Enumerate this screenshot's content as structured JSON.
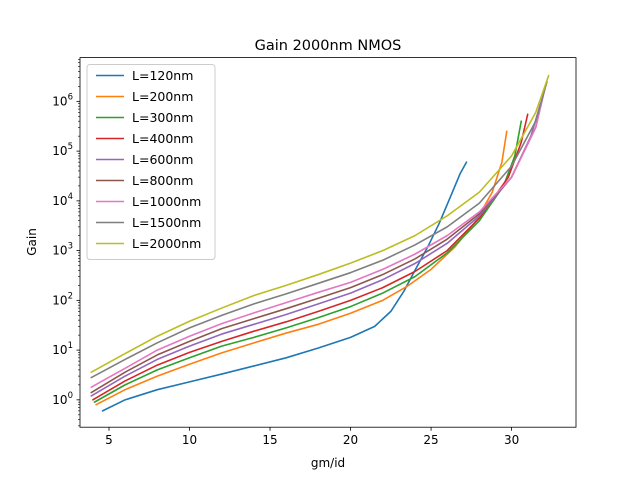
{
  "chart_data": {
    "type": "line",
    "title": "Gain 2000nm NMOS",
    "xlabel": "gm/id",
    "ylabel": "Gain",
    "xlim": [
      3.2,
      34.0
    ],
    "ylim_log10": [
      -0.55,
      6.88
    ],
    "y_scale": "log",
    "x_ticks": [
      5,
      10,
      15,
      20,
      25,
      30
    ],
    "y_ticks": [
      {
        "exp": 0,
        "label_base": "10",
        "label_exp": "0"
      },
      {
        "exp": 1,
        "label_base": "10",
        "label_exp": "1"
      },
      {
        "exp": 2,
        "label_base": "10",
        "label_exp": "2"
      },
      {
        "exp": 3,
        "label_base": "10",
        "label_exp": "3"
      },
      {
        "exp": 4,
        "label_base": "10",
        "label_exp": "4"
      },
      {
        "exp": 5,
        "label_base": "10",
        "label_exp": "5"
      },
      {
        "exp": 6,
        "label_base": "10",
        "label_exp": "6"
      }
    ],
    "grid": false,
    "legend_position": "top-left",
    "series": [
      {
        "name": "L=120nm",
        "color": "#1f77b4",
        "points": [
          [
            4.6,
            0.6
          ],
          [
            6,
            1.0
          ],
          [
            8,
            1.6
          ],
          [
            10,
            2.3
          ],
          [
            12,
            3.3
          ],
          [
            14,
            4.8
          ],
          [
            16,
            7.0
          ],
          [
            18,
            11
          ],
          [
            20,
            18
          ],
          [
            21.5,
            30
          ],
          [
            22.5,
            60
          ],
          [
            23.3,
            150
          ],
          [
            24,
            400
          ],
          [
            24.8,
            1200
          ],
          [
            25.5,
            3500
          ],
          [
            26.2,
            12000
          ],
          [
            26.8,
            35000
          ],
          [
            27.2,
            60000
          ]
        ]
      },
      {
        "name": "L=200nm",
        "color": "#ff7f0e",
        "points": [
          [
            4.2,
            0.8
          ],
          [
            6,
            1.6
          ],
          [
            8,
            3.0
          ],
          [
            10,
            5.2
          ],
          [
            12,
            8.8
          ],
          [
            14,
            14
          ],
          [
            16,
            22
          ],
          [
            18,
            33
          ],
          [
            20,
            55
          ],
          [
            22,
            100
          ],
          [
            23.5,
            190
          ],
          [
            25,
            420
          ],
          [
            26.5,
            1200
          ],
          [
            27.8,
            4000
          ],
          [
            28.8,
            15000
          ],
          [
            29.4,
            60000
          ],
          [
            29.7,
            250000
          ]
        ]
      },
      {
        "name": "L=300nm",
        "color": "#2ca02c",
        "points": [
          [
            4.1,
            0.9
          ],
          [
            6,
            2.0
          ],
          [
            8,
            4.0
          ],
          [
            10,
            7.0
          ],
          [
            12,
            12
          ],
          [
            14,
            18
          ],
          [
            16,
            28
          ],
          [
            18,
            45
          ],
          [
            20,
            75
          ],
          [
            22,
            140
          ],
          [
            24,
            300
          ],
          [
            26,
            900
          ],
          [
            28,
            4000
          ],
          [
            29.5,
            20000
          ],
          [
            30.2,
            80000
          ],
          [
            30.6,
            400000
          ]
        ]
      },
      {
        "name": "L=400nm",
        "color": "#d62728",
        "points": [
          [
            4.0,
            1.0
          ],
          [
            6,
            2.4
          ],
          [
            8,
            5.0
          ],
          [
            10,
            9.0
          ],
          [
            12,
            15
          ],
          [
            14,
            24
          ],
          [
            16,
            37
          ],
          [
            18,
            60
          ],
          [
            20,
            100
          ],
          [
            22,
            180
          ],
          [
            24,
            380
          ],
          [
            26,
            1000
          ],
          [
            28,
            4500
          ],
          [
            29.8,
            30000
          ],
          [
            30.6,
            150000
          ],
          [
            31.0,
            550000
          ]
        ]
      },
      {
        "name": "L=600nm",
        "color": "#9467bd",
        "points": [
          [
            3.9,
            1.2
          ],
          [
            6,
            3.0
          ],
          [
            8,
            6.5
          ],
          [
            10,
            12
          ],
          [
            12,
            21
          ],
          [
            14,
            33
          ],
          [
            16,
            52
          ],
          [
            18,
            85
          ],
          [
            20,
            140
          ],
          [
            22,
            260
          ],
          [
            24,
            550
          ],
          [
            26,
            1400
          ],
          [
            28,
            5000
          ],
          [
            30,
            30000
          ],
          [
            31.2,
            200000
          ],
          [
            31.8,
            900000
          ]
        ]
      },
      {
        "name": "L=800nm",
        "color": "#8c564b",
        "points": [
          [
            3.9,
            1.4
          ],
          [
            6,
            3.6
          ],
          [
            8,
            8.0
          ],
          [
            10,
            15
          ],
          [
            12,
            27
          ],
          [
            14,
            43
          ],
          [
            16,
            68
          ],
          [
            18,
            110
          ],
          [
            20,
            180
          ],
          [
            22,
            330
          ],
          [
            24,
            680
          ],
          [
            26,
            1700
          ],
          [
            28,
            5500
          ],
          [
            30,
            30000
          ],
          [
            31.5,
            300000
          ],
          [
            32.0,
            1500000
          ]
        ]
      },
      {
        "name": "L=1000nm",
        "color": "#e377c2",
        "points": [
          [
            3.9,
            1.8
          ],
          [
            6,
            4.3
          ],
          [
            8,
            10
          ],
          [
            10,
            19
          ],
          [
            12,
            34
          ],
          [
            14,
            56
          ],
          [
            16,
            90
          ],
          [
            18,
            145
          ],
          [
            20,
            230
          ],
          [
            22,
            420
          ],
          [
            24,
            850
          ],
          [
            26,
            2000
          ],
          [
            28,
            6000
          ],
          [
            30,
            30000
          ],
          [
            31.5,
            300000
          ],
          [
            32.1,
            2000000
          ]
        ]
      },
      {
        "name": "L=1500nm",
        "color": "#7f7f7f",
        "points": [
          [
            3.9,
            2.8
          ],
          [
            6,
            6.5
          ],
          [
            8,
            14
          ],
          [
            10,
            28
          ],
          [
            12,
            50
          ],
          [
            14,
            85
          ],
          [
            16,
            135
          ],
          [
            18,
            220
          ],
          [
            20,
            360
          ],
          [
            22,
            640
          ],
          [
            24,
            1300
          ],
          [
            26,
            3000
          ],
          [
            28,
            9000
          ],
          [
            30,
            50000
          ],
          [
            31.5,
            400000
          ],
          [
            32.2,
            2500000
          ]
        ]
      },
      {
        "name": "L=2000nm",
        "color": "#bcbd22",
        "points": [
          [
            3.9,
            3.6
          ],
          [
            6,
            8.5
          ],
          [
            8,
            19
          ],
          [
            10,
            38
          ],
          [
            12,
            70
          ],
          [
            14,
            125
          ],
          [
            16,
            200
          ],
          [
            18,
            330
          ],
          [
            20,
            560
          ],
          [
            22,
            1000
          ],
          [
            24,
            2000
          ],
          [
            26,
            5000
          ],
          [
            28,
            15000
          ],
          [
            30,
            80000
          ],
          [
            31.5,
            600000
          ],
          [
            32.3,
            3300000
          ]
        ]
      }
    ]
  }
}
